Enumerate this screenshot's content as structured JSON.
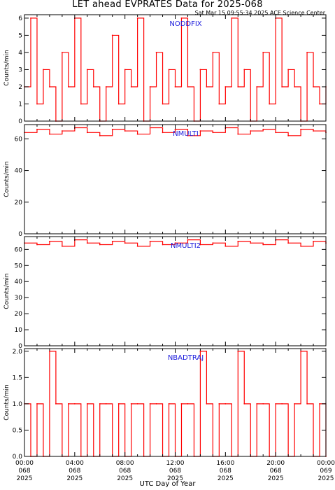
{
  "title": "LET ahead EVPRATES Data for 2025-068",
  "timestamp": "Sat Mar 15 09:55:34 2025 ACE Science Center",
  "xaxis_label": "UTC Day of Year",
  "colors": {
    "series": "#ff0000",
    "panel_label": "#1a1adc",
    "axes": "#000000"
  },
  "chart_data": [
    {
      "type": "line",
      "name": "NODDFIX",
      "ylabel": "Counts/min",
      "ylim": [
        0,
        6.2
      ],
      "yticks": [
        0,
        1,
        2,
        3,
        4,
        5,
        6
      ],
      "ytick_labels": [
        "0",
        "1",
        "2",
        "3",
        "4",
        "5",
        "6"
      ],
      "xlim": [
        0,
        24
      ],
      "x_hours": [
        0,
        0.5,
        1,
        1.5,
        2,
        2.5,
        3,
        3.5,
        4,
        4.5,
        5,
        5.5,
        6,
        6.5,
        7,
        7.5,
        8,
        8.5,
        9,
        9.5,
        10,
        10.5,
        11,
        11.5,
        12,
        12.5,
        13,
        13.5,
        14,
        14.5,
        15,
        15.5,
        16,
        16.5,
        17,
        17.5,
        18,
        18.5,
        19,
        19.5,
        20,
        20.5,
        21,
        21.5,
        22,
        22.5,
        23,
        23.5,
        24
      ],
      "values": [
        2,
        6,
        1,
        3,
        2,
        0,
        4,
        2,
        6,
        1,
        3,
        2,
        0,
        2,
        5,
        1,
        3,
        2,
        6,
        0,
        2,
        4,
        1,
        3,
        2,
        6,
        2,
        0,
        3,
        2,
        4,
        1,
        2,
        6,
        2,
        3,
        0,
        2,
        4,
        1,
        6,
        2,
        3,
        2,
        0,
        4,
        2,
        1,
        2
      ]
    },
    {
      "type": "line",
      "name": "NMULTI",
      "ylabel": "Counts/min",
      "ylim": [
        0,
        69
      ],
      "yticks": [
        0,
        20,
        40,
        60
      ],
      "ytick_labels": [
        "0",
        "20",
        "40",
        "60"
      ],
      "xlim": [
        0,
        24
      ],
      "x_hours": [
        0,
        1,
        2,
        3,
        4,
        5,
        6,
        7,
        8,
        9,
        10,
        11,
        12,
        13,
        14,
        15,
        16,
        17,
        18,
        19,
        20,
        21,
        22,
        23,
        24
      ],
      "values": [
        64,
        66,
        63,
        65,
        67,
        64,
        62,
        66,
        65,
        63,
        67,
        64,
        66,
        62,
        65,
        64,
        67,
        63,
        65,
        66,
        64,
        62,
        66,
        65,
        64
      ]
    },
    {
      "type": "line",
      "name": "NMULTI2",
      "ylabel": "Counts/min",
      "ylim": [
        0,
        68
      ],
      "yticks": [
        0,
        10,
        20,
        30,
        40,
        50,
        60
      ],
      "ytick_labels": [
        "0",
        "10",
        "20",
        "30",
        "40",
        "50",
        "60"
      ],
      "xlim": [
        0,
        24
      ],
      "x_hours": [
        0,
        1,
        2,
        3,
        4,
        5,
        6,
        7,
        8,
        9,
        10,
        11,
        12,
        13,
        14,
        15,
        16,
        17,
        18,
        19,
        20,
        21,
        22,
        23,
        24
      ],
      "values": [
        64,
        63,
        65,
        62,
        66,
        64,
        63,
        65,
        64,
        62,
        65,
        63,
        64,
        66,
        63,
        64,
        62,
        65,
        64,
        63,
        66,
        64,
        62,
        65,
        64
      ]
    },
    {
      "type": "line",
      "name": "NBADTRAJ",
      "ylabel": "Counts/min",
      "ylim": [
        0,
        2.05
      ],
      "yticks": [
        0,
        0.5,
        1,
        1.5,
        2
      ],
      "ytick_labels": [
        "0.0",
        "0.5",
        "1.0",
        "1.5",
        "2.0"
      ],
      "xlim": [
        0,
        24
      ],
      "x_hours": [
        0,
        0.5,
        1,
        1.5,
        2,
        2.5,
        3,
        3.5,
        4,
        4.5,
        5,
        5.5,
        6,
        6.5,
        7,
        7.5,
        8,
        8.5,
        9,
        9.5,
        10,
        10.5,
        11,
        11.5,
        12,
        12.5,
        13,
        13.5,
        14,
        14.5,
        15,
        15.5,
        16,
        16.5,
        17,
        17.5,
        18,
        18.5,
        19,
        19.5,
        20,
        20.5,
        21,
        21.5,
        22,
        22.5,
        23,
        23.5,
        24
      ],
      "values": [
        1,
        0,
        1,
        0,
        2,
        1,
        0,
        1,
        1,
        0,
        1,
        0,
        1,
        1,
        0,
        1,
        0,
        1,
        1,
        0,
        1,
        1,
        0,
        1,
        0,
        1,
        1,
        0,
        2,
        1,
        0,
        1,
        1,
        0,
        2,
        1,
        0,
        1,
        1,
        0,
        1,
        1,
        0,
        1,
        2,
        1,
        0,
        1,
        0
      ]
    }
  ],
  "x_ticks": [
    {
      "time": "00:00",
      "doy": "068",
      "year": "2025"
    },
    {
      "time": "04:00",
      "doy": "068",
      "year": "2025"
    },
    {
      "time": "08:00",
      "doy": "068",
      "year": "2025"
    },
    {
      "time": "12:00",
      "doy": "068",
      "year": "2025"
    },
    {
      "time": "16:00",
      "doy": "068",
      "year": "2025"
    },
    {
      "time": "20:00",
      "doy": "068",
      "year": "2025"
    },
    {
      "time": "00:00",
      "doy": "069",
      "year": "2025"
    }
  ]
}
